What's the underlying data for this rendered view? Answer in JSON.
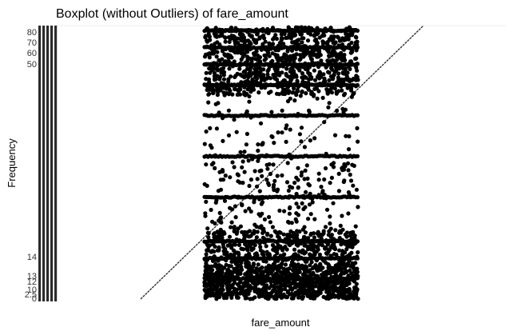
{
  "chart_data": {
    "type": "scatter",
    "title": "Boxplot (without Outliers) of  fare_amount",
    "xlabel": "fare_amount",
    "ylabel": "Frequency",
    "y_tick_labels": [
      "0",
      "2.5",
      "10",
      "12",
      "13",
      "14",
      "50",
      "60",
      "70",
      "80"
    ],
    "ylim": [
      0,
      80
    ],
    "grid": false,
    "legend": "none",
    "point_color": "#000000",
    "band_values": [
      6,
      12,
      17,
      30,
      42,
      54,
      63,
      69,
      74,
      79
    ],
    "point_density": [
      {
        "from": 0,
        "to": 10,
        "level": "very high"
      },
      {
        "from": 10,
        "to": 20,
        "level": "high"
      },
      {
        "from": 20,
        "to": 40,
        "level": "medium"
      },
      {
        "from": 40,
        "to": 60,
        "level": "low"
      },
      {
        "from": 60,
        "to": 80,
        "level": "very high"
      }
    ],
    "reference_line": {
      "from": [
        0,
        0
      ],
      "to": [
        80,
        80
      ],
      "style": "dashed"
    }
  }
}
